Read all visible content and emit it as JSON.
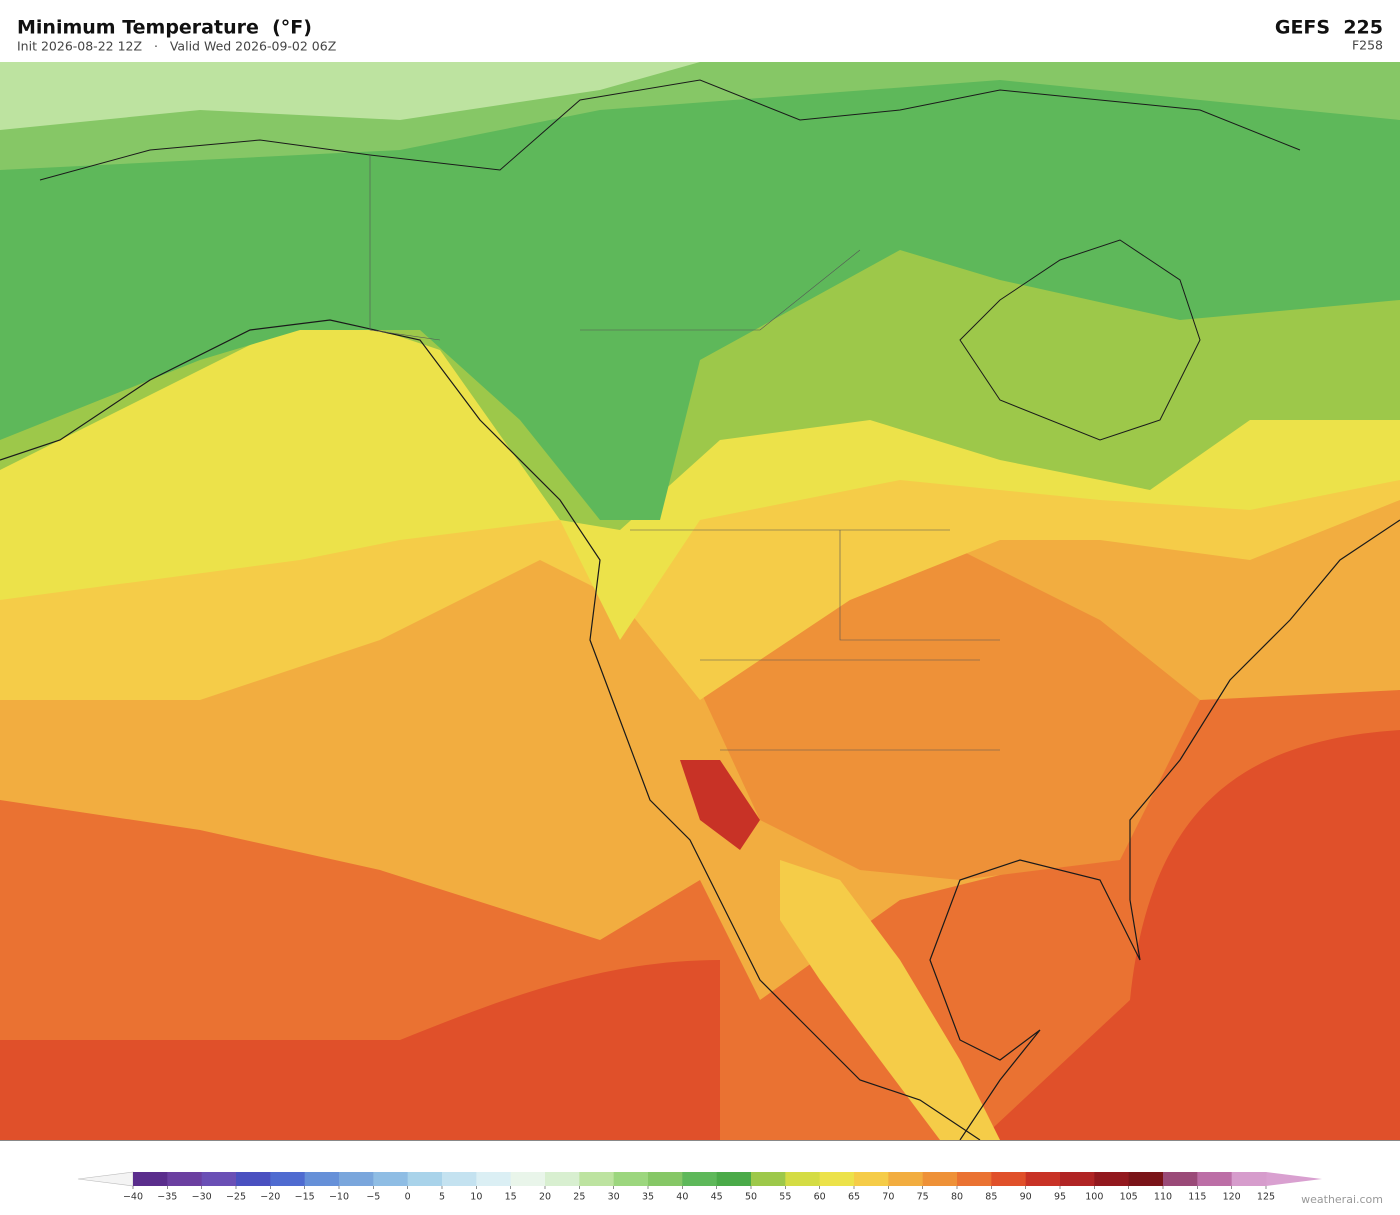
{
  "header": {
    "title": "Minimum Temperature  (°F)",
    "subtitle": "Init 2026-08-22 12Z   ·   Valid Wed 2026-09-02 06Z",
    "model": "GEFS  225",
    "forecast_hour": "F258"
  },
  "colorbar": {
    "ticks": [
      "−40",
      "−35",
      "−30",
      "−25",
      "−20",
      "−15",
      "−10",
      "−5",
      "0",
      "5",
      "10",
      "15",
      "20",
      "25",
      "30",
      "35",
      "40",
      "45",
      "50",
      "55",
      "60",
      "65",
      "70",
      "75",
      "80",
      "85",
      "90",
      "95",
      "100",
      "105",
      "110",
      "115",
      "120",
      "125"
    ],
    "colors": [
      "#5a2d8c",
      "#6b3fa0",
      "#6a4fb5",
      "#4a50c0",
      "#4f6bd0",
      "#6690d8",
      "#7aa6dc",
      "#8fbde4",
      "#a9d3ea",
      "#c4e2f0",
      "#dbeff4",
      "#e9f5ea",
      "#d8efd0",
      "#bde3a0",
      "#9cd67e",
      "#86c766",
      "#5eb85a",
      "#4aaa48",
      "#9dc84a",
      "#d4dc44",
      "#ece24a",
      "#f5cc48",
      "#f2ad40",
      "#ee9138",
      "#ea7232",
      "#e0502a",
      "#c83226",
      "#b02424",
      "#92181e",
      "#7a1418",
      "#9a4a78",
      "#bc6ea6",
      "#d69ccc"
    ],
    "extend_colors": [
      "#f4f4f4",
      "#d9a0d0"
    ]
  },
  "credit": "weatherai.com"
}
